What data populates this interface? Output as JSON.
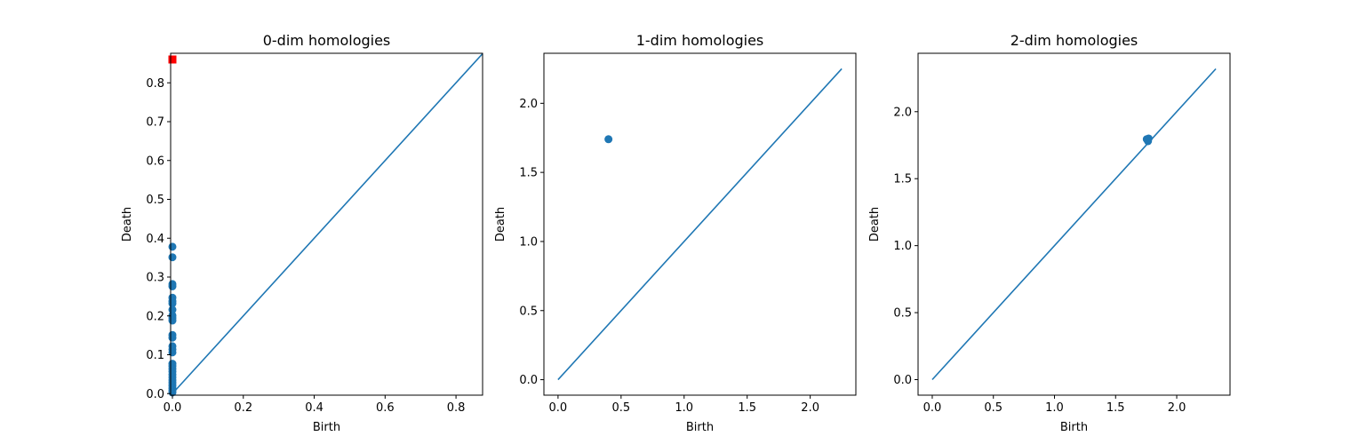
{
  "chart_data": [
    {
      "type": "scatter",
      "title": "0-dim homologies",
      "xlabel": "Birth",
      "ylabel": "Death",
      "xlim": [
        -0.005,
        0.875
      ],
      "ylim": [
        -0.004,
        0.876
      ],
      "xticks": [
        0.0,
        0.2,
        0.4,
        0.6,
        0.8
      ],
      "xtick_labels": [
        "0.0",
        "0.2",
        "0.4",
        "0.6",
        "0.8"
      ],
      "yticks": [
        0.0,
        0.1,
        0.2,
        0.3,
        0.4,
        0.5,
        0.6,
        0.7,
        0.8
      ],
      "ytick_labels": [
        "0.0",
        "0.1",
        "0.2",
        "0.3",
        "0.4",
        "0.5",
        "0.6",
        "0.7",
        "0.8"
      ],
      "diagonal": [
        0,
        0.875
      ],
      "series": [
        {
          "marker": "circle",
          "color": "#1f77b4",
          "points": [
            [
              0,
              0.378
            ],
            [
              0,
              0.351
            ],
            [
              0,
              0.282
            ],
            [
              0,
              0.276
            ],
            [
              0,
              0.247
            ],
            [
              0,
              0.238
            ],
            [
              0,
              0.232
            ],
            [
              0,
              0.216
            ],
            [
              0,
              0.201
            ],
            [
              0,
              0.195
            ],
            [
              0,
              0.188
            ],
            [
              0,
              0.151
            ],
            [
              0,
              0.144
            ],
            [
              0,
              0.122
            ],
            [
              0,
              0.114
            ],
            [
              0,
              0.106
            ],
            [
              0,
              0.077
            ],
            [
              0,
              0.071
            ],
            [
              0,
              0.064
            ],
            [
              0,
              0.057
            ],
            [
              0,
              0.049
            ],
            [
              0,
              0.042
            ],
            [
              0,
              0.035
            ],
            [
              0,
              0.028
            ],
            [
              0,
              0.021
            ],
            [
              0,
              0.014
            ],
            [
              0,
              0.008
            ],
            [
              0,
              0.003
            ]
          ]
        },
        {
          "marker": "square",
          "color": "#ff0000",
          "points": [
            [
              0,
              0.86
            ]
          ]
        }
      ]
    },
    {
      "type": "scatter",
      "title": "1-dim homologies",
      "xlabel": "Birth",
      "ylabel": "Death",
      "xlim": [
        -0.112,
        2.362
      ],
      "ylim": [
        -0.112,
        2.362
      ],
      "xticks": [
        0.0,
        0.5,
        1.0,
        1.5,
        2.0
      ],
      "xtick_labels": [
        "0.0",
        "0.5",
        "1.0",
        "1.5",
        "2.0"
      ],
      "yticks": [
        0.0,
        0.5,
        1.0,
        1.5,
        2.0
      ],
      "ytick_labels": [
        "0.0",
        "0.5",
        "1.0",
        "1.5",
        "2.0"
      ],
      "diagonal": [
        0,
        2.25
      ],
      "series": [
        {
          "marker": "circle",
          "color": "#1f77b4",
          "points": [
            [
              0.4,
              1.74
            ]
          ]
        }
      ]
    },
    {
      "type": "scatter",
      "title": "2-dim homologies",
      "xlabel": "Birth",
      "ylabel": "Death",
      "xlim": [
        -0.116,
        2.436
      ],
      "ylim": [
        -0.116,
        2.436
      ],
      "xticks": [
        0.0,
        0.5,
        1.0,
        1.5,
        2.0
      ],
      "xtick_labels": [
        "0.0",
        "0.5",
        "1.0",
        "1.5",
        "2.0"
      ],
      "yticks": [
        0.0,
        0.5,
        1.0,
        1.5,
        2.0
      ],
      "ytick_labels": [
        "0.0",
        "0.5",
        "1.0",
        "1.5",
        "2.0"
      ],
      "diagonal": [
        0,
        2.32
      ],
      "series": [
        {
          "marker": "circle",
          "color": "#1f77b4",
          "points": [
            [
              1.755,
              1.795
            ],
            [
              1.77,
              1.8
            ],
            [
              1.765,
              1.78
            ]
          ]
        }
      ]
    }
  ]
}
